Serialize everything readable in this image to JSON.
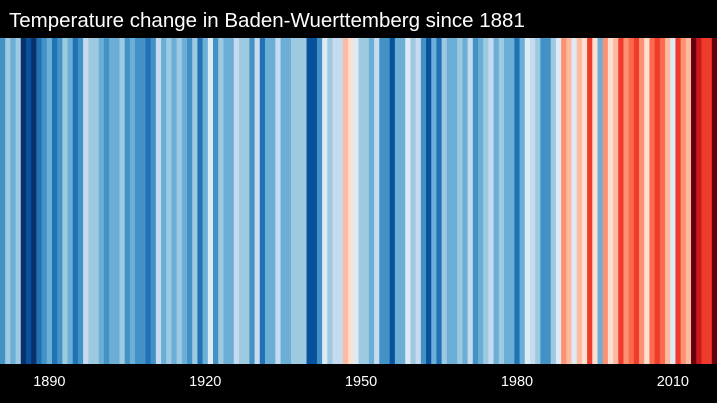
{
  "chart_data": {
    "type": "heatmap",
    "title": "Temperature change in Baden-Wuerttemberg since 1881",
    "x_start": 1881,
    "x_end": 2018,
    "xticks": [
      {
        "value": 1890,
        "label": "1890"
      },
      {
        "value": 1920,
        "label": "1920"
      },
      {
        "value": 1950,
        "label": "1950"
      },
      {
        "value": 1980,
        "label": "1980"
      },
      {
        "value": 2010,
        "label": "2010"
      }
    ],
    "color_scale": [
      "#08306b",
      "#08519c",
      "#2171b5",
      "#4292c6",
      "#6baed6",
      "#9ecae1",
      "#c6dbef",
      "#deebf7",
      "#fee0d2",
      "#fcbba1",
      "#fc9272",
      "#fb6a4a",
      "#ef3b2c",
      "#cb181d",
      "#a50f15",
      "#67000d"
    ],
    "anomaly_range": [
      -1.5,
      2.2
    ],
    "years": [
      1881,
      1882,
      1883,
      1884,
      1885,
      1886,
      1887,
      1888,
      1889,
      1890,
      1891,
      1892,
      1893,
      1894,
      1895,
      1896,
      1897,
      1898,
      1899,
      1900,
      1901,
      1902,
      1903,
      1904,
      1905,
      1906,
      1907,
      1908,
      1909,
      1910,
      1911,
      1912,
      1913,
      1914,
      1915,
      1916,
      1917,
      1918,
      1919,
      1920,
      1921,
      1922,
      1923,
      1924,
      1925,
      1926,
      1927,
      1928,
      1929,
      1930,
      1931,
      1932,
      1933,
      1934,
      1935,
      1936,
      1937,
      1938,
      1939,
      1940,
      1941,
      1942,
      1943,
      1944,
      1945,
      1946,
      1947,
      1948,
      1949,
      1950,
      1951,
      1952,
      1953,
      1954,
      1955,
      1956,
      1957,
      1958,
      1959,
      1960,
      1961,
      1962,
      1963,
      1964,
      1965,
      1966,
      1967,
      1968,
      1969,
      1970,
      1971,
      1972,
      1973,
      1974,
      1975,
      1976,
      1977,
      1978,
      1979,
      1980,
      1981,
      1982,
      1983,
      1984,
      1985,
      1986,
      1987,
      1988,
      1989,
      1990,
      1991,
      1992,
      1993,
      1994,
      1995,
      1996,
      1997,
      1998,
      1999,
      2000,
      2001,
      2002,
      2003,
      2004,
      2005,
      2006,
      2007,
      2008,
      2009,
      2010,
      2011,
      2012,
      2013,
      2014,
      2015,
      2016,
      2017,
      2018
    ],
    "anomalies": [
      -0.6,
      -0.3,
      -0.5,
      -0.3,
      -1.3,
      -1.1,
      -1.4,
      -1.0,
      -0.6,
      -0.5,
      -0.9,
      -0.6,
      -0.3,
      -0.4,
      -0.9,
      -0.6,
      0.1,
      -0.3,
      -0.3,
      -0.4,
      -0.8,
      -0.5,
      -0.4,
      -0.3,
      -0.6,
      -0.5,
      -0.6,
      -0.7,
      -1.0,
      -0.6,
      0.1,
      -0.5,
      -0.3,
      -0.4,
      -0.2,
      -0.5,
      -0.7,
      -0.2,
      -0.9,
      -0.4,
      0.2,
      -0.6,
      -0.3,
      -0.5,
      -0.5,
      0.0,
      -0.3,
      -0.2,
      -0.6,
      -0.1,
      -0.9,
      -0.4,
      -0.5,
      0.1,
      -0.4,
      -0.5,
      -0.3,
      -0.2,
      -0.3,
      -1.1,
      -1.2,
      -0.6,
      0.3,
      -0.2,
      0.1,
      -0.1,
      0.6,
      0.4,
      0.3,
      -0.2,
      -0.3,
      -0.4,
      0.0,
      -0.8,
      -0.6,
      -1.1,
      -0.4,
      -0.5,
      0.3,
      -0.3,
      0.0,
      -0.8,
      -1.2,
      -0.4,
      -0.9,
      -0.3,
      -0.5,
      -0.4,
      -0.3,
      -0.5,
      0.1,
      -0.6,
      -0.4,
      -0.2,
      0.0,
      -0.4,
      -0.2,
      -0.5,
      -0.4,
      -0.9,
      -0.4,
      0.2,
      0.1,
      -0.3,
      -0.6,
      -0.8,
      -0.3,
      0.2,
      1.0,
      0.8,
      0.3,
      0.6,
      0.4,
      1.3,
      0.5,
      -0.5,
      0.9,
      0.5,
      0.8,
      1.3,
      0.9,
      1.2,
      1.5,
      0.9,
      0.5,
      1.1,
      1.4,
      1.2,
      0.6,
      0.3,
      1.5,
      1.0,
      0.8,
      2.0,
      1.6,
      1.3,
      1.3,
      2.1
    ]
  }
}
